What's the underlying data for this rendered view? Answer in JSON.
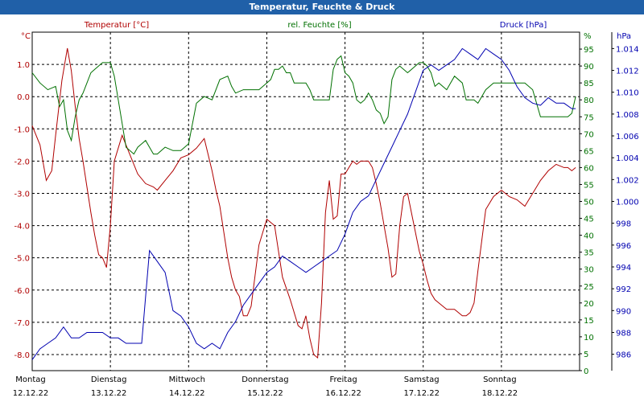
{
  "title": "Temperatur, Feuchte & Druck",
  "colors": {
    "temperature": "#b00000",
    "humidity": "#007000",
    "pressure": "#0000b0",
    "title_bar": "#2060a8",
    "grid": "#000000"
  },
  "chart_data": {
    "type": "line",
    "title": "Temperatur, Feuchte & Druck",
    "grid": true,
    "x_labels": [
      {
        "day": "Montag",
        "date": "12.12.22"
      },
      {
        "day": "Dienstag",
        "date": "13.12.22"
      },
      {
        "day": "Mittwoch",
        "date": "14.12.22"
      },
      {
        "day": "Donnerstag",
        "date": "15.12.22"
      },
      {
        "day": "Freitag",
        "date": "16.12.22"
      },
      {
        "day": "Samstag",
        "date": "17.12.22"
      },
      {
        "day": "Sonntag",
        "date": "18.12.22"
      }
    ],
    "xlim": [
      0,
      7
    ],
    "axes": {
      "temperature": {
        "unit_label": "°C",
        "ylim": [
          -8.5,
          2.0
        ],
        "ticks": [
          1.0,
          0.0,
          -1.0,
          -2.0,
          -3.0,
          -4.0,
          -5.0,
          -6.0,
          -7.0,
          -8.0
        ],
        "tick_labels": [
          "1.0",
          "0.0",
          "-1.0",
          "-2.0",
          "-3.0",
          "-4.0",
          "-5.0",
          "-6.0",
          "-7.0",
          "-8.0"
        ]
      },
      "humidity": {
        "unit_label": "%",
        "ylim": [
          0,
          100
        ],
        "ticks": [
          95,
          90,
          85,
          80,
          75,
          70,
          65,
          60,
          55,
          50,
          45,
          40,
          35,
          30,
          25,
          20,
          15,
          10,
          5,
          0
        ],
        "tick_labels": [
          "95",
          "90",
          "85",
          "80",
          "75",
          "70",
          "65",
          "60",
          "55",
          "50",
          "45",
          "40",
          "35",
          "30",
          "25",
          "20",
          "15",
          "10",
          "5",
          "0"
        ]
      },
      "pressure": {
        "unit_label": "hPa",
        "ylim": [
          984.5,
          1015.5
        ],
        "ticks": [
          1014,
          1012,
          1010,
          1008,
          1006,
          1004,
          1002,
          1000,
          998,
          996,
          994,
          992,
          990,
          988,
          986
        ],
        "tick_labels": [
          "1.014",
          "1.012",
          "1.010",
          "1.008",
          "1.006",
          "1.004",
          "1.002",
          "1.000",
          "998",
          "996",
          "994",
          "992",
          "990",
          "988",
          "986"
        ]
      }
    },
    "series": [
      {
        "name": "Temperatur [°C]",
        "axis": "temperature",
        "x": [
          0,
          0.1,
          0.18,
          0.25,
          0.3,
          0.38,
          0.45,
          0.5,
          0.55,
          0.6,
          0.65,
          0.7,
          0.75,
          0.8,
          0.85,
          0.9,
          0.95,
          1.0,
          1.05,
          1.15,
          1.25,
          1.35,
          1.45,
          1.55,
          1.6,
          1.7,
          1.8,
          1.9,
          2.0,
          2.1,
          2.2,
          2.25,
          2.3,
          2.35,
          2.4,
          2.45,
          2.5,
          2.55,
          2.6,
          2.65,
          2.7,
          2.75,
          2.8,
          2.9,
          3.0,
          3.1,
          3.2,
          3.3,
          3.4,
          3.45,
          3.5,
          3.55,
          3.6,
          3.65,
          3.7,
          3.75,
          3.8,
          3.85,
          3.9,
          3.95,
          4.0,
          4.05,
          4.1,
          4.15,
          4.2,
          4.25,
          4.3,
          4.35,
          4.4,
          4.45,
          4.5,
          4.55,
          4.6,
          4.65,
          4.7,
          4.75,
          4.8,
          4.85,
          4.9,
          4.95,
          5.0,
          5.05,
          5.1,
          5.15,
          5.2,
          5.3,
          5.4,
          5.5,
          5.55,
          5.6,
          5.65,
          5.7,
          5.8,
          5.9,
          6.0,
          6.1,
          6.2,
          6.25,
          6.3,
          6.4,
          6.5,
          6.6,
          6.7,
          6.8,
          6.85,
          6.9,
          6.95
        ],
        "values": [
          -0.9,
          -1.5,
          -2.6,
          -2.3,
          -1.2,
          0.5,
          1.5,
          0.8,
          -0.3,
          -1.3,
          -2.0,
          -2.8,
          -3.6,
          -4.3,
          -4.9,
          -5.0,
          -5.3,
          -4.0,
          -2.0,
          -1.2,
          -1.8,
          -2.4,
          -2.7,
          -2.8,
          -2.9,
          -2.6,
          -2.3,
          -1.9,
          -1.8,
          -1.6,
          -1.3,
          -1.8,
          -2.3,
          -2.9,
          -3.4,
          -4.2,
          -5.0,
          -5.6,
          -6.0,
          -6.2,
          -6.8,
          -6.8,
          -6.5,
          -4.6,
          -3.8,
          -4.0,
          -5.6,
          -6.3,
          -7.1,
          -7.2,
          -6.8,
          -7.5,
          -8.0,
          -8.1,
          -6.4,
          -3.6,
          -2.6,
          -3.8,
          -3.7,
          -2.4,
          -2.4,
          -2.2,
          -2.0,
          -2.1,
          -2.0,
          -2.0,
          -2.0,
          -2.2,
          -2.7,
          -3.3,
          -4.0,
          -4.7,
          -5.6,
          -5.5,
          -4.0,
          -3.1,
          -3.0,
          -3.6,
          -4.2,
          -4.8,
          -5.2,
          -5.7,
          -6.1,
          -6.3,
          -6.4,
          -6.6,
          -6.6,
          -6.8,
          -6.8,
          -6.7,
          -6.4,
          -5.4,
          -3.5,
          -3.1,
          -2.9,
          -3.1,
          -3.2,
          -3.3,
          -3.4,
          -3.0,
          -2.6,
          -2.3,
          -2.1,
          -2.2,
          -2.2,
          -2.3,
          -2.2
        ]
      },
      {
        "name": "rel. Feuchte [%]",
        "axis": "humidity",
        "x": [
          0,
          0.1,
          0.2,
          0.3,
          0.35,
          0.4,
          0.45,
          0.5,
          0.55,
          0.6,
          0.65,
          0.7,
          0.75,
          0.8,
          0.9,
          1.0,
          1.05,
          1.1,
          1.2,
          1.3,
          1.35,
          1.4,
          1.45,
          1.5,
          1.55,
          1.6,
          1.7,
          1.8,
          1.9,
          2.0,
          2.1,
          2.2,
          2.3,
          2.4,
          2.5,
          2.55,
          2.6,
          2.7,
          2.8,
          2.9,
          3.0,
          3.05,
          3.1,
          3.15,
          3.2,
          3.25,
          3.3,
          3.35,
          3.4,
          3.5,
          3.55,
          3.6,
          3.7,
          3.8,
          3.85,
          3.9,
          3.95,
          4.0,
          4.05,
          4.1,
          4.15,
          4.2,
          4.25,
          4.3,
          4.35,
          4.4,
          4.45,
          4.5,
          4.55,
          4.6,
          4.65,
          4.7,
          4.8,
          4.9,
          4.95,
          5.0,
          5.05,
          5.1,
          5.15,
          5.2,
          5.3,
          5.4,
          5.5,
          5.55,
          5.6,
          5.65,
          5.7,
          5.8,
          5.9,
          6.0,
          6.1,
          6.2,
          6.3,
          6.4,
          6.5,
          6.6,
          6.7,
          6.8,
          6.85,
          6.9,
          6.95
        ],
        "values": [
          88,
          85,
          83,
          84,
          78,
          80,
          71,
          68,
          75,
          80,
          82,
          85,
          88,
          89,
          91,
          91,
          87,
          80,
          66,
          64,
          66,
          67,
          68,
          66,
          64,
          64,
          66,
          65,
          65,
          67,
          79,
          81,
          80,
          86,
          87,
          84,
          82,
          83,
          83,
          83,
          85,
          86,
          89,
          89,
          90,
          88,
          88,
          85,
          85,
          85,
          83,
          80,
          80,
          80,
          89,
          92,
          93,
          88,
          87,
          85,
          80,
          79,
          80,
          82,
          80,
          77,
          76,
          73,
          75,
          86,
          89,
          90,
          88,
          90,
          91,
          91,
          90,
          88,
          84,
          85,
          83,
          87,
          85,
          80,
          80,
          80,
          79,
          83,
          85,
          85,
          85,
          85,
          85,
          83,
          75,
          75,
          75,
          75,
          75,
          76,
          81
        ]
      },
      {
        "name": "Druck [hPa]",
        "axis": "pressure",
        "x": [
          0,
          0.1,
          0.2,
          0.3,
          0.4,
          0.5,
          0.6,
          0.7,
          0.8,
          0.9,
          1.0,
          1.1,
          1.2,
          1.3,
          1.4,
          1.5,
          1.55,
          1.6,
          1.7,
          1.8,
          1.9,
          2.0,
          2.1,
          2.2,
          2.3,
          2.4,
          2.5,
          2.6,
          2.7,
          2.8,
          2.9,
          3.0,
          3.1,
          3.2,
          3.3,
          3.4,
          3.5,
          3.6,
          3.7,
          3.8,
          3.9,
          4.0,
          4.1,
          4.2,
          4.3,
          4.4,
          4.5,
          4.6,
          4.7,
          4.8,
          4.9,
          5.0,
          5.1,
          5.2,
          5.3,
          5.4,
          5.5,
          5.6,
          5.7,
          5.8,
          5.9,
          6.0,
          6.1,
          6.2,
          6.3,
          6.4,
          6.5,
          6.6,
          6.7,
          6.8,
          6.9,
          6.95
        ],
        "values": [
          985.5,
          986.5,
          987.0,
          987.5,
          988.5,
          987.5,
          987.5,
          988.0,
          988.0,
          988.0,
          987.5,
          987.5,
          987.0,
          987.0,
          987.0,
          995.5,
          995.0,
          994.5,
          993.5,
          990.0,
          989.5,
          988.5,
          987.0,
          986.5,
          987.0,
          986.5,
          988.0,
          989.0,
          990.5,
          991.5,
          992.5,
          993.5,
          994.0,
          995.0,
          994.5,
          994.0,
          993.5,
          994.0,
          994.5,
          995.0,
          995.5,
          997.0,
          999.0,
          1000.0,
          1000.5,
          1002.0,
          1003.5,
          1005.0,
          1006.5,
          1008.0,
          1010.0,
          1012.0,
          1012.5,
          1012.0,
          1012.5,
          1013.0,
          1014.0,
          1013.5,
          1013.0,
          1014.0,
          1013.5,
          1013.0,
          1012.0,
          1010.5,
          1009.5,
          1009.0,
          1008.8,
          1009.5,
          1009.0,
          1009.0,
          1008.5,
          1008.5
        ]
      }
    ]
  }
}
